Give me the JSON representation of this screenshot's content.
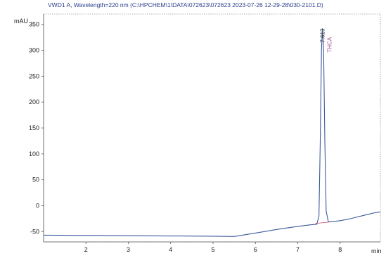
{
  "chart_data": {
    "type": "line",
    "title": "VWD1 A, Wavelength=220 nm (C:\\HPCHEM\\1\\DATA\\072623\\072623 2023-07-26 12-29-28\\030-2101.D)",
    "ylabel": "mAU",
    "xlabel": "min",
    "xlim": [
      1.0,
      8.95
    ],
    "ylim": [
      -70,
      370
    ],
    "yticks": [
      -50,
      0,
      50,
      100,
      150,
      200,
      250,
      300,
      350
    ],
    "ytick_labels": [
      "-50",
      "0",
      "50",
      "100",
      "150",
      "200",
      "250",
      "300",
      "350"
    ],
    "xticks": [
      2,
      3,
      4,
      5,
      6,
      7,
      8
    ],
    "xtick_labels": [
      "2",
      "3",
      "4",
      "5",
      "6",
      "7",
      "8"
    ],
    "grid": false,
    "series": [
      {
        "color": "#3a5a9c",
        "x": [
          1.0,
          2.0,
          3.0,
          4.0,
          5.0,
          5.5,
          6.0,
          6.5,
          7.0,
          7.3,
          7.45,
          7.5,
          7.53,
          7.56,
          7.58,
          7.61,
          7.64,
          7.67,
          7.72,
          7.8,
          8.0,
          8.2,
          8.4,
          8.6,
          8.8,
          8.95
        ],
        "y": [
          -57,
          -57.5,
          -58,
          -58.5,
          -59,
          -59.5,
          -53,
          -46,
          -40,
          -37,
          -36,
          -20,
          120,
          300,
          342,
          300,
          120,
          -10,
          -31,
          -31,
          -29,
          -26,
          -22,
          -18,
          -14,
          -12
        ]
      }
    ],
    "peaks": [
      {
        "rt_label": "7.613",
        "name": "THCA",
        "x": 7.58,
        "y": 342
      }
    ],
    "colors": {
      "trace": "#3a5a9c",
      "title": "#2b3f8c",
      "peak_name": "#a04a9a",
      "baseline_marker": "#c0506a"
    }
  }
}
